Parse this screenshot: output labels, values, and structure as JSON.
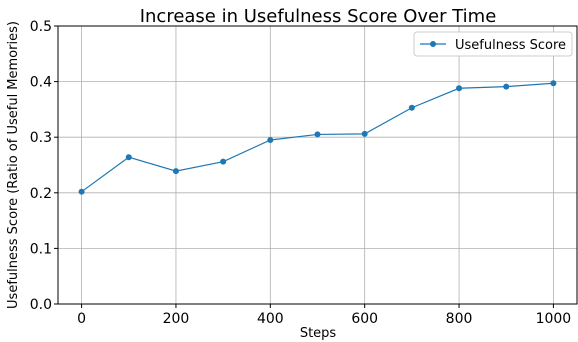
{
  "chart_data": {
    "type": "line",
    "title": "Increase in Usefulness Score Over Time",
    "xlabel": "Steps",
    "ylabel": "Usefulness Score (Ratio of Useful Memories)",
    "xlim": [
      -50,
      1050
    ],
    "ylim": [
      0.0,
      0.5
    ],
    "xticks": [
      0,
      200,
      400,
      600,
      800,
      1000
    ],
    "yticks": [
      0.0,
      0.1,
      0.2,
      0.3,
      0.4,
      0.5
    ],
    "xtick_labels": [
      "0",
      "200",
      "400",
      "600",
      "800",
      "1000"
    ],
    "ytick_labels": [
      "0.0",
      "0.1",
      "0.2",
      "0.3",
      "0.4",
      "0.5"
    ],
    "grid": true,
    "legend_position": "top-right",
    "series": [
      {
        "name": "Usefulness Score",
        "color": "#1f77b4",
        "marker": "circle",
        "x": [
          0,
          100,
          200,
          300,
          400,
          500,
          600,
          700,
          800,
          900,
          1000
        ],
        "y": [
          0.202,
          0.264,
          0.239,
          0.256,
          0.295,
          0.305,
          0.306,
          0.353,
          0.388,
          0.391,
          0.397
        ]
      }
    ]
  }
}
